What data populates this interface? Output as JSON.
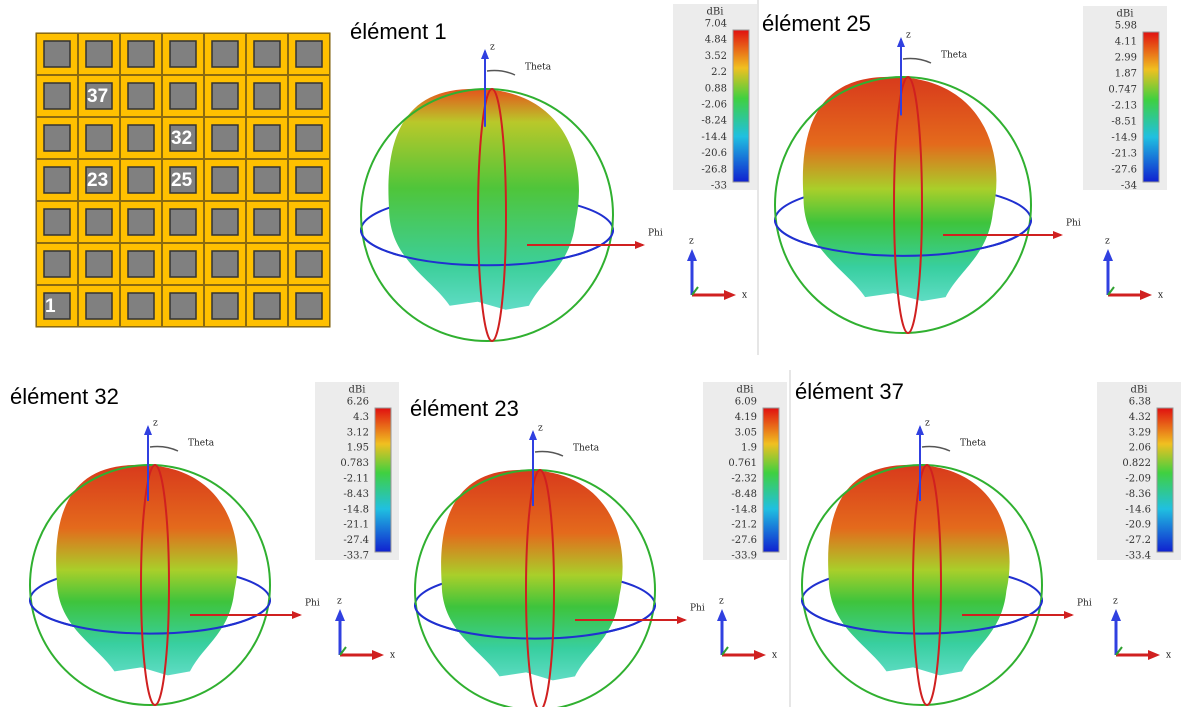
{
  "array": {
    "labels": [
      "1",
      "23",
      "25",
      "32",
      "37"
    ]
  },
  "panels": [
    {
      "title": "élément 1",
      "colorbar": {
        "unit": "dBi",
        "ticks": [
          "7.04",
          "4.84",
          "3.52",
          "2.2",
          "0.88",
          "-2.06",
          "-8.24",
          "-14.4",
          "-20.6",
          "-26.8",
          "-33"
        ]
      },
      "axes": {
        "z": "z",
        "theta": "Theta",
        "phi": "Phi"
      },
      "triad": {
        "z": "z",
        "x": "x"
      }
    },
    {
      "title": "élément 25",
      "colorbar": {
        "unit": "dBi",
        "ticks": [
          "5.98",
          "4.11",
          "2.99",
          "1.87",
          "0.747",
          "-2.13",
          "-8.51",
          "-14.9",
          "-21.3",
          "-27.6",
          "-34"
        ]
      },
      "axes": {
        "z": "z",
        "theta": "Theta",
        "phi": "Phi"
      },
      "triad": {
        "z": "z",
        "x": "x"
      }
    },
    {
      "title": "élément 32",
      "colorbar": {
        "unit": "dBi",
        "ticks": [
          "6.26",
          "4.3",
          "3.12",
          "1.95",
          "0.783",
          "-2.11",
          "-8.43",
          "-14.8",
          "-21.1",
          "-27.4",
          "-33.7"
        ]
      },
      "axes": {
        "z": "z",
        "theta": "Theta",
        "phi": "Phi"
      },
      "triad": {
        "z": "z",
        "x": "x"
      }
    },
    {
      "title": "élément 23",
      "colorbar": {
        "unit": "dBi",
        "ticks": [
          "6.09",
          "4.19",
          "3.05",
          "1.9",
          "0.761",
          "-2.32",
          "-8.48",
          "-14.8",
          "-21.2",
          "-27.6",
          "-33.9"
        ]
      },
      "axes": {
        "z": "z",
        "theta": "Theta",
        "phi": "Phi"
      },
      "triad": {
        "z": "z",
        "x": "x"
      }
    },
    {
      "title": "élément 37",
      "colorbar": {
        "unit": "dBi",
        "ticks": [
          "6.38",
          "4.32",
          "3.29",
          "2.06",
          "0.822",
          "-2.09",
          "-8.36",
          "-14.6",
          "-20.9",
          "-27.2",
          "-33.4"
        ]
      },
      "axes": {
        "z": "z",
        "theta": "Theta",
        "phi": "Phi"
      },
      "triad": {
        "z": "z",
        "x": "x"
      }
    }
  ]
}
